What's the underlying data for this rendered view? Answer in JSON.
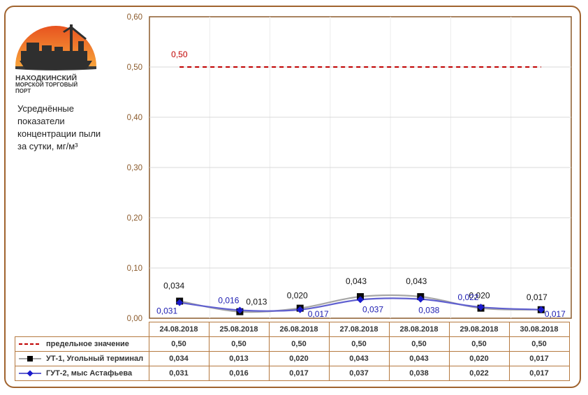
{
  "logo": {
    "line1": "НАХОДКИНСКИЙ",
    "line2": "МОРСКОЙ ТОРГОВЫЙ",
    "line3": "ПОРТ"
  },
  "note": {
    "line1": "Усреднённые",
    "line2": "показатели",
    "line3": "концентрации пыли",
    "line4": "за сутки, мг/м³"
  },
  "colors": {
    "frame": "#a0632e",
    "limit": "#c00000",
    "series1": "#a6a6a6",
    "series2": "#6060d0",
    "axis_labels": "#8b5a2b",
    "table_border": "#b5793f"
  },
  "chart_data": {
    "type": "line",
    "categories": [
      "24.08.2018",
      "25.08.2018",
      "26.08.2018",
      "27.08.2018",
      "28.08.2018",
      "29.08.2018",
      "30.08.2018"
    ],
    "ylim": [
      0,
      0.6
    ],
    "yticks": [
      "0,00",
      "0,10",
      "0,20",
      "0,30",
      "0,40",
      "0,50",
      "0,60"
    ],
    "grid": true,
    "limit_label": "0,50",
    "series": [
      {
        "name": "предельное значение",
        "values": [
          0.5,
          0.5,
          0.5,
          0.5,
          0.5,
          0.5,
          0.5
        ],
        "labels": [
          "0,50",
          "0,50",
          "0,50",
          "0,50",
          "0,50",
          "0,50",
          "0,50"
        ]
      },
      {
        "name": "УТ-1, Угольный терминал",
        "values": [
          0.034,
          0.013,
          0.02,
          0.043,
          0.043,
          0.02,
          0.017
        ],
        "labels": [
          "0,034",
          "0,013",
          "0,020",
          "0,043",
          "0,043",
          "0,020",
          "0,017"
        ]
      },
      {
        "name": "ГУТ-2, мыс Астафьева",
        "values": [
          0.031,
          0.016,
          0.017,
          0.037,
          0.038,
          0.022,
          0.017
        ],
        "labels": [
          "0,031",
          "0,016",
          "0,017",
          "0,037",
          "0,038",
          "0,022",
          "0,017"
        ]
      }
    ]
  }
}
